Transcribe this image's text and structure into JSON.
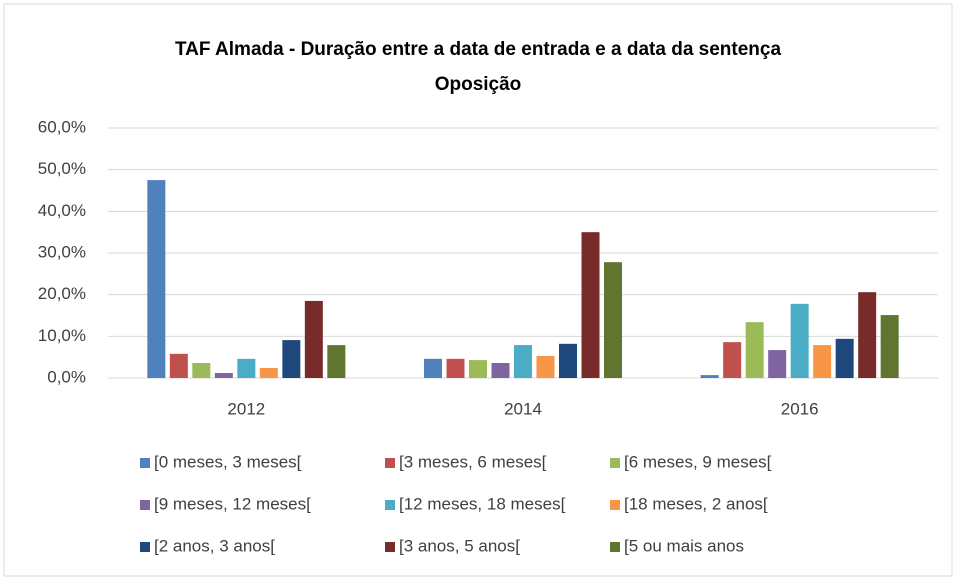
{
  "chart_data": {
    "type": "bar",
    "title": "TAF Almada - Duração entre a data de entrada e a data da sentença",
    "subtitle": "Oposição",
    "categories": [
      "2012",
      "2014",
      "2016"
    ],
    "series": [
      {
        "name": "[0 meses, 3 meses[",
        "color": "#4f81bd",
        "values": [
          47.5,
          4.6,
          0.7
        ]
      },
      {
        "name": "[3 meses, 6 meses[",
        "color": "#c0504d",
        "values": [
          5.8,
          4.6,
          8.6
        ]
      },
      {
        "name": "[6 meses, 9 meses[",
        "color": "#9bbb59",
        "values": [
          3.6,
          4.3,
          13.4
        ]
      },
      {
        "name": "[9 meses, 12 meses[",
        "color": "#8064a2",
        "values": [
          1.2,
          3.6,
          6.7
        ]
      },
      {
        "name": "[12 meses, 18 meses[",
        "color": "#4bacc6",
        "values": [
          4.6,
          7.9,
          17.8
        ]
      },
      {
        "name": "[18 meses, 2 anos[",
        "color": "#f79646",
        "values": [
          2.4,
          5.3,
          7.9
        ]
      },
      {
        "name": "[2 anos, 3 anos[",
        "color": "#1f497d",
        "values": [
          9.1,
          8.2,
          9.4
        ]
      },
      {
        "name": "[3 anos, 5 anos[",
        "color": "#772c2a",
        "values": [
          18.5,
          35.0,
          20.6
        ]
      },
      {
        "name": "[5 ou mais anos",
        "color": "#5f7530",
        "values": [
          7.9,
          27.8,
          15.1
        ]
      }
    ],
    "ylim": [
      0,
      60
    ],
    "yticks": [
      {
        "value": 0,
        "label": "0,0%"
      },
      {
        "value": 10,
        "label": "10,0%"
      },
      {
        "value": 20,
        "label": "20,0%"
      },
      {
        "value": 30,
        "label": "30,0%"
      },
      {
        "value": 40,
        "label": "40,0%"
      },
      {
        "value": 50,
        "label": "50,0%"
      },
      {
        "value": 60,
        "label": "60,0%"
      }
    ],
    "grid": true,
    "legend": "bottom"
  }
}
